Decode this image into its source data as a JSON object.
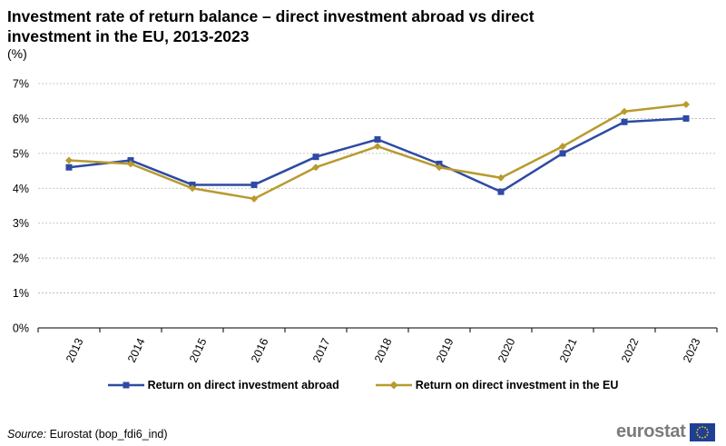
{
  "header": {
    "title": "Investment rate of return balance – direct investment abroad vs direct investment in the EU, 2013-2023",
    "unit": "(%)"
  },
  "chart_data": {
    "type": "line",
    "categories": [
      "2013",
      "2014",
      "2015",
      "2016",
      "2017",
      "2018",
      "2019",
      "2020",
      "2021",
      "2022",
      "2023"
    ],
    "series": [
      {
        "name": "Return on direct investment abroad",
        "values": [
          4.6,
          4.8,
          4.1,
          4.1,
          4.9,
          5.4,
          4.7,
          3.9,
          5.0,
          5.9,
          6.0
        ],
        "color": "#2e4aa3",
        "marker": "square"
      },
      {
        "name": "Return on direct investment in the EU",
        "values": [
          4.8,
          4.7,
          4.0,
          3.7,
          4.6,
          5.2,
          4.6,
          4.3,
          5.2,
          6.2,
          6.4
        ],
        "color": "#b89a2e",
        "marker": "diamond"
      }
    ],
    "ylim": [
      0,
      7
    ],
    "yticks": [
      0,
      1,
      2,
      3,
      4,
      5,
      6,
      7
    ],
    "ytick_labels": [
      "0%",
      "1%",
      "2%",
      "3%",
      "4%",
      "5%",
      "6%",
      "7%"
    ],
    "grid": true,
    "legend_position": "bottom"
  },
  "footer": {
    "source_label": "Source:",
    "source_text": "Eurostat (bop_fdi6_ind)",
    "logo_text": "eurostat"
  }
}
